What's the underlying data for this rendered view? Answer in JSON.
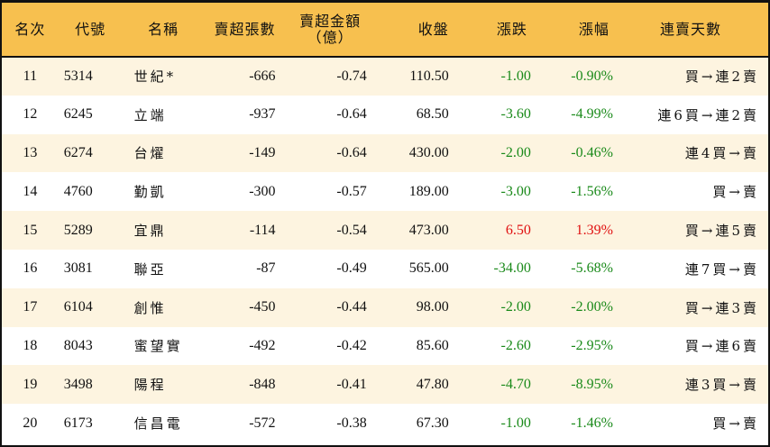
{
  "headers": [
    "名次",
    "代號",
    "名稱",
    "賣超張數",
    "賣超金額",
    "（億）",
    "收盤",
    "漲跌",
    "漲幅",
    "連賣天數"
  ],
  "colors": {
    "header_bg": "#F7C04F",
    "band_bg": "#FDF4E0",
    "down": "#1a8a1a",
    "up": "#e01010"
  },
  "rows": [
    {
      "rank": "11",
      "code": "5314",
      "name": "世紀*",
      "shares": "-666",
      "amount": "-0.74",
      "close": "110.50",
      "change": "-1.00",
      "pct": "-0.90%",
      "streak": "買→連2賣",
      "dir": "down"
    },
    {
      "rank": "12",
      "code": "6245",
      "name": "立端",
      "shares": "-937",
      "amount": "-0.64",
      "close": "68.50",
      "change": "-3.60",
      "pct": "-4.99%",
      "streak": "連6買→連2賣",
      "dir": "down"
    },
    {
      "rank": "13",
      "code": "6274",
      "name": "台燿",
      "shares": "-149",
      "amount": "-0.64",
      "close": "430.00",
      "change": "-2.00",
      "pct": "-0.46%",
      "streak": "連4買→賣",
      "dir": "down"
    },
    {
      "rank": "14",
      "code": "4760",
      "name": "勤凱",
      "shares": "-300",
      "amount": "-0.57",
      "close": "189.00",
      "change": "-3.00",
      "pct": "-1.56%",
      "streak": "買→賣",
      "dir": "down"
    },
    {
      "rank": "15",
      "code": "5289",
      "name": "宜鼎",
      "shares": "-114",
      "amount": "-0.54",
      "close": "473.00",
      "change": "6.50",
      "pct": "1.39%",
      "streak": "買→連5賣",
      "dir": "up"
    },
    {
      "rank": "16",
      "code": "3081",
      "name": "聯亞",
      "shares": "-87",
      "amount": "-0.49",
      "close": "565.00",
      "change": "-34.00",
      "pct": "-5.68%",
      "streak": "連7買→賣",
      "dir": "down"
    },
    {
      "rank": "17",
      "code": "6104",
      "name": "創惟",
      "shares": "-450",
      "amount": "-0.44",
      "close": "98.00",
      "change": "-2.00",
      "pct": "-2.00%",
      "streak": "買→連3賣",
      "dir": "down"
    },
    {
      "rank": "18",
      "code": "8043",
      "name": "蜜望實",
      "shares": "-492",
      "amount": "-0.42",
      "close": "85.60",
      "change": "-2.60",
      "pct": "-2.95%",
      "streak": "買→連6賣",
      "dir": "down"
    },
    {
      "rank": "19",
      "code": "3498",
      "name": "陽程",
      "shares": "-848",
      "amount": "-0.41",
      "close": "47.80",
      "change": "-4.70",
      "pct": "-8.95%",
      "streak": "連3買→賣",
      "dir": "down"
    },
    {
      "rank": "20",
      "code": "6173",
      "name": "信昌電",
      "shares": "-572",
      "amount": "-0.38",
      "close": "67.30",
      "change": "-1.00",
      "pct": "-1.46%",
      "streak": "買→賣",
      "dir": "down"
    }
  ]
}
